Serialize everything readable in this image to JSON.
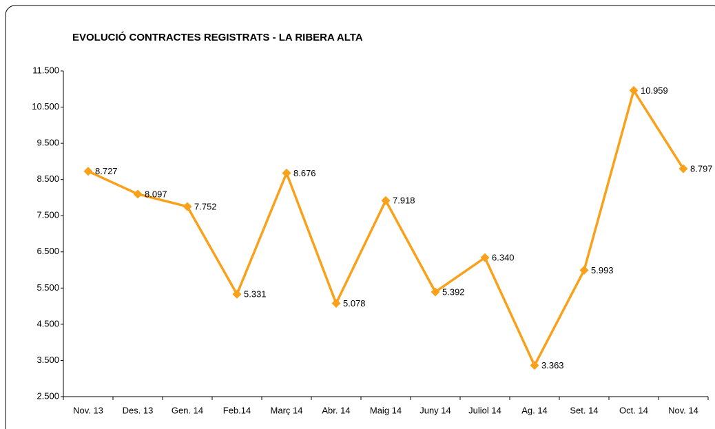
{
  "chart_data": {
    "type": "line",
    "title": "EVOLUCIÓ CONTRACTES REGISTRATS - LA RIBERA ALTA",
    "categories": [
      "Nov. 13",
      "Des. 13",
      "Gen. 14",
      "Feb.14",
      "Març 14",
      "Abr. 14",
      "Maig 14",
      "Juny 14",
      "Juliol 14",
      "Ag. 14",
      "Set. 14",
      "Oct. 14",
      "Nov. 14"
    ],
    "values": [
      8727,
      8097,
      7752,
      5331,
      8676,
      5078,
      7918,
      5392,
      6340,
      3363,
      5993,
      10959,
      8797
    ],
    "value_labels": [
      "8.727",
      "8.097",
      "7.752",
      "5.331",
      "8.676",
      "5.078",
      "7.918",
      "5.392",
      "6.340",
      "3.363",
      "5.993",
      "10.959",
      "8.797"
    ],
    "color": "#f9a11b",
    "ylim": [
      2500,
      11500
    ],
    "yticks": [
      {
        "value": 2500,
        "label": "2.500"
      },
      {
        "value": 3500,
        "label": "3.500"
      },
      {
        "value": 4500,
        "label": "4.500"
      },
      {
        "value": 5500,
        "label": "5.500"
      },
      {
        "value": 6500,
        "label": "6.500"
      },
      {
        "value": 7500,
        "label": "7.500"
      },
      {
        "value": 8500,
        "label": "8.500"
      },
      {
        "value": 9500,
        "label": "9.500"
      },
      {
        "value": 10500,
        "label": "10.500"
      },
      {
        "value": 11500,
        "label": "11.500"
      }
    ],
    "grid": false
  }
}
